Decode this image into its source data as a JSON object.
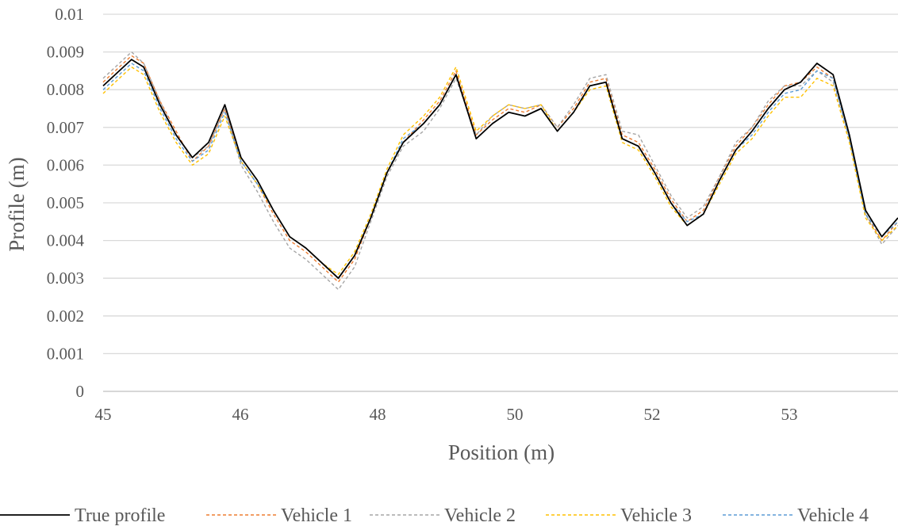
{
  "chart_data": {
    "type": "line",
    "title": "",
    "xlabel": "Position (m)",
    "ylabel": "Profile (m)",
    "xlim": [
      45,
      54.8
    ],
    "ylim": [
      0,
      0.01
    ],
    "yticks": [
      "0",
      "0.001",
      "0.002",
      "0.003",
      "0.004",
      "0.005",
      "0.006",
      "0.007",
      "0.008",
      "0.009",
      "0.01"
    ],
    "xticks": [
      "45",
      "46",
      "48",
      "50",
      "52",
      "53"
    ],
    "grid": "horizontal",
    "legend_position": "bottom",
    "x": [
      45.0,
      45.2,
      45.35,
      45.5,
      45.7,
      45.9,
      46.1,
      46.3,
      46.5,
      46.7,
      46.9,
      47.1,
      47.3,
      47.5,
      47.7,
      47.9,
      48.1,
      48.3,
      48.5,
      48.7,
      48.95,
      49.15,
      49.35,
      49.6,
      49.8,
      50.0,
      50.2,
      50.4,
      50.6,
      50.8,
      51.0,
      51.2,
      51.4,
      51.6,
      51.8,
      52.0,
      52.2,
      52.4,
      52.6,
      52.8,
      53.0,
      53.2,
      53.4,
      53.6,
      53.8,
      54.0,
      54.2,
      54.4,
      54.6,
      54.8
    ],
    "series": [
      {
        "name": "True profile",
        "color": "#000000",
        "dashed": false,
        "values": [
          0.0081,
          0.0085,
          0.0088,
          0.0086,
          0.0076,
          0.0068,
          0.0062,
          0.0066,
          0.0076,
          0.0062,
          0.0056,
          0.0048,
          0.0041,
          0.0038,
          0.0034,
          0.003,
          0.0036,
          0.0046,
          0.0058,
          0.0066,
          0.0071,
          0.0076,
          0.0084,
          0.0067,
          0.0071,
          0.0074,
          0.0073,
          0.0075,
          0.0069,
          0.0074,
          0.0081,
          0.0082,
          0.0067,
          0.0065,
          0.0058,
          0.005,
          0.0044,
          0.0047,
          0.0056,
          0.0064,
          0.0069,
          0.0075,
          0.008,
          0.0082,
          0.0087,
          0.0084,
          0.0068,
          0.0048,
          0.0041,
          0.0046
        ]
      },
      {
        "name": "Vehicle 1",
        "color": "#ed7d31",
        "dashed": true,
        "values": [
          0.0082,
          0.0086,
          0.0089,
          0.0087,
          0.0077,
          0.0069,
          0.0061,
          0.0065,
          0.0075,
          0.0061,
          0.0055,
          0.0047,
          0.004,
          0.0037,
          0.0033,
          0.0029,
          0.0035,
          0.0046,
          0.0058,
          0.0066,
          0.0072,
          0.0077,
          0.0085,
          0.0068,
          0.0072,
          0.0075,
          0.0074,
          0.0076,
          0.007,
          0.0075,
          0.0082,
          0.0083,
          0.0068,
          0.0066,
          0.0059,
          0.0051,
          0.0045,
          0.0048,
          0.0057,
          0.0065,
          0.007,
          0.0076,
          0.0081,
          0.0082,
          0.0086,
          0.0083,
          0.0067,
          0.0047,
          0.004,
          0.0045
        ]
      },
      {
        "name": "Vehicle 2",
        "color": "#a5a5a5",
        "dashed": true,
        "values": [
          0.0083,
          0.0087,
          0.009,
          0.0087,
          0.0077,
          0.0068,
          0.0062,
          0.0065,
          0.0075,
          0.006,
          0.0053,
          0.0045,
          0.0038,
          0.0035,
          0.0031,
          0.0027,
          0.0033,
          0.0045,
          0.0057,
          0.0065,
          0.0069,
          0.0075,
          0.0083,
          0.0068,
          0.0073,
          0.0076,
          0.0075,
          0.0076,
          0.007,
          0.0076,
          0.0083,
          0.0084,
          0.0069,
          0.0068,
          0.006,
          0.0052,
          0.0046,
          0.0049,
          0.0057,
          0.0066,
          0.007,
          0.0077,
          0.0081,
          0.0081,
          0.0085,
          0.0082,
          0.0067,
          0.0047,
          0.0039,
          0.0044
        ]
      },
      {
        "name": "Vehicle 3",
        "color": "#ffc000",
        "dashed": true,
        "values": [
          0.0079,
          0.0083,
          0.0086,
          0.0084,
          0.0074,
          0.0066,
          0.006,
          0.0063,
          0.0073,
          0.0061,
          0.0055,
          0.0048,
          0.0041,
          0.0038,
          0.0034,
          0.0031,
          0.0037,
          0.0047,
          0.0059,
          0.0068,
          0.0073,
          0.0078,
          0.0086,
          0.0069,
          0.0073,
          0.0076,
          0.0075,
          0.0076,
          0.0069,
          0.0074,
          0.008,
          0.0081,
          0.0066,
          0.0064,
          0.0057,
          0.0049,
          0.0044,
          0.0047,
          0.0055,
          0.0063,
          0.0067,
          0.0073,
          0.0078,
          0.0078,
          0.0083,
          0.0081,
          0.0066,
          0.0046,
          0.004,
          0.0044
        ]
      },
      {
        "name": "Vehicle 4",
        "color": "#5b9bd5",
        "dashed": true,
        "values": [
          0.008,
          0.0084,
          0.0087,
          0.0085,
          0.0075,
          0.0067,
          0.0061,
          0.0064,
          0.0074,
          0.0061,
          0.0055,
          0.0048,
          0.0041,
          0.0038,
          0.0034,
          0.003,
          0.0036,
          0.0046,
          0.0058,
          0.0067,
          0.0071,
          0.0076,
          0.0084,
          0.0067,
          0.0071,
          0.0074,
          0.0073,
          0.0075,
          0.0069,
          0.0074,
          0.0081,
          0.0082,
          0.0067,
          0.0065,
          0.0058,
          0.005,
          0.0045,
          0.0047,
          0.0056,
          0.0064,
          0.0068,
          0.0074,
          0.0079,
          0.008,
          0.0085,
          0.0083,
          0.0067,
          0.0047,
          0.0041,
          0.0045
        ]
      }
    ]
  }
}
